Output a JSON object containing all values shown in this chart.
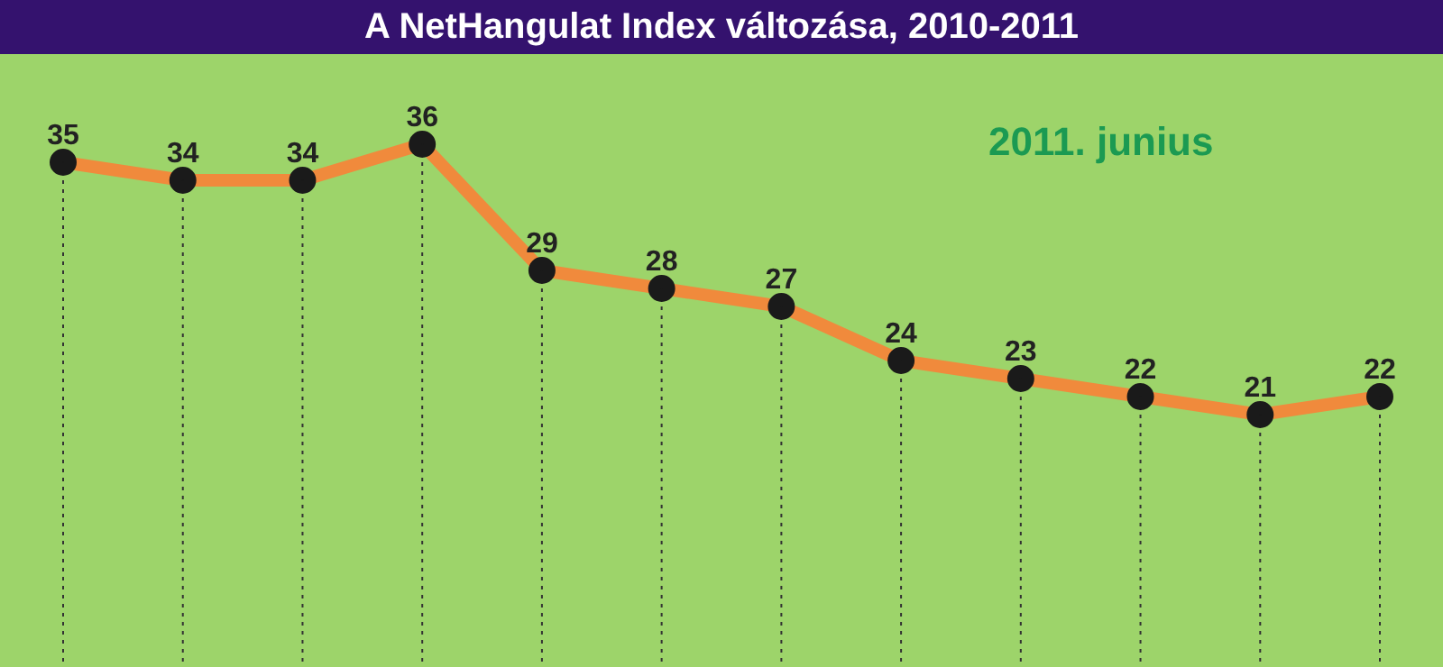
{
  "chart_data": {
    "type": "line",
    "title": "A NetHangulat Index változása, 2010-2011",
    "categories": [
      null,
      null,
      null,
      null,
      null,
      null,
      null,
      null,
      null,
      null,
      null,
      null
    ],
    "series": [
      {
        "color": "#f08a3c",
        "values": [
          35,
          34,
          34,
          36,
          29,
          28,
          27,
          24,
          23,
          22,
          21,
          22
        ]
      }
    ],
    "data_labels": true,
    "marker": "circle",
    "grid": "x",
    "legend": false,
    "tick_labels": false,
    "annotations": [
      "2011. junius"
    ]
  }
}
